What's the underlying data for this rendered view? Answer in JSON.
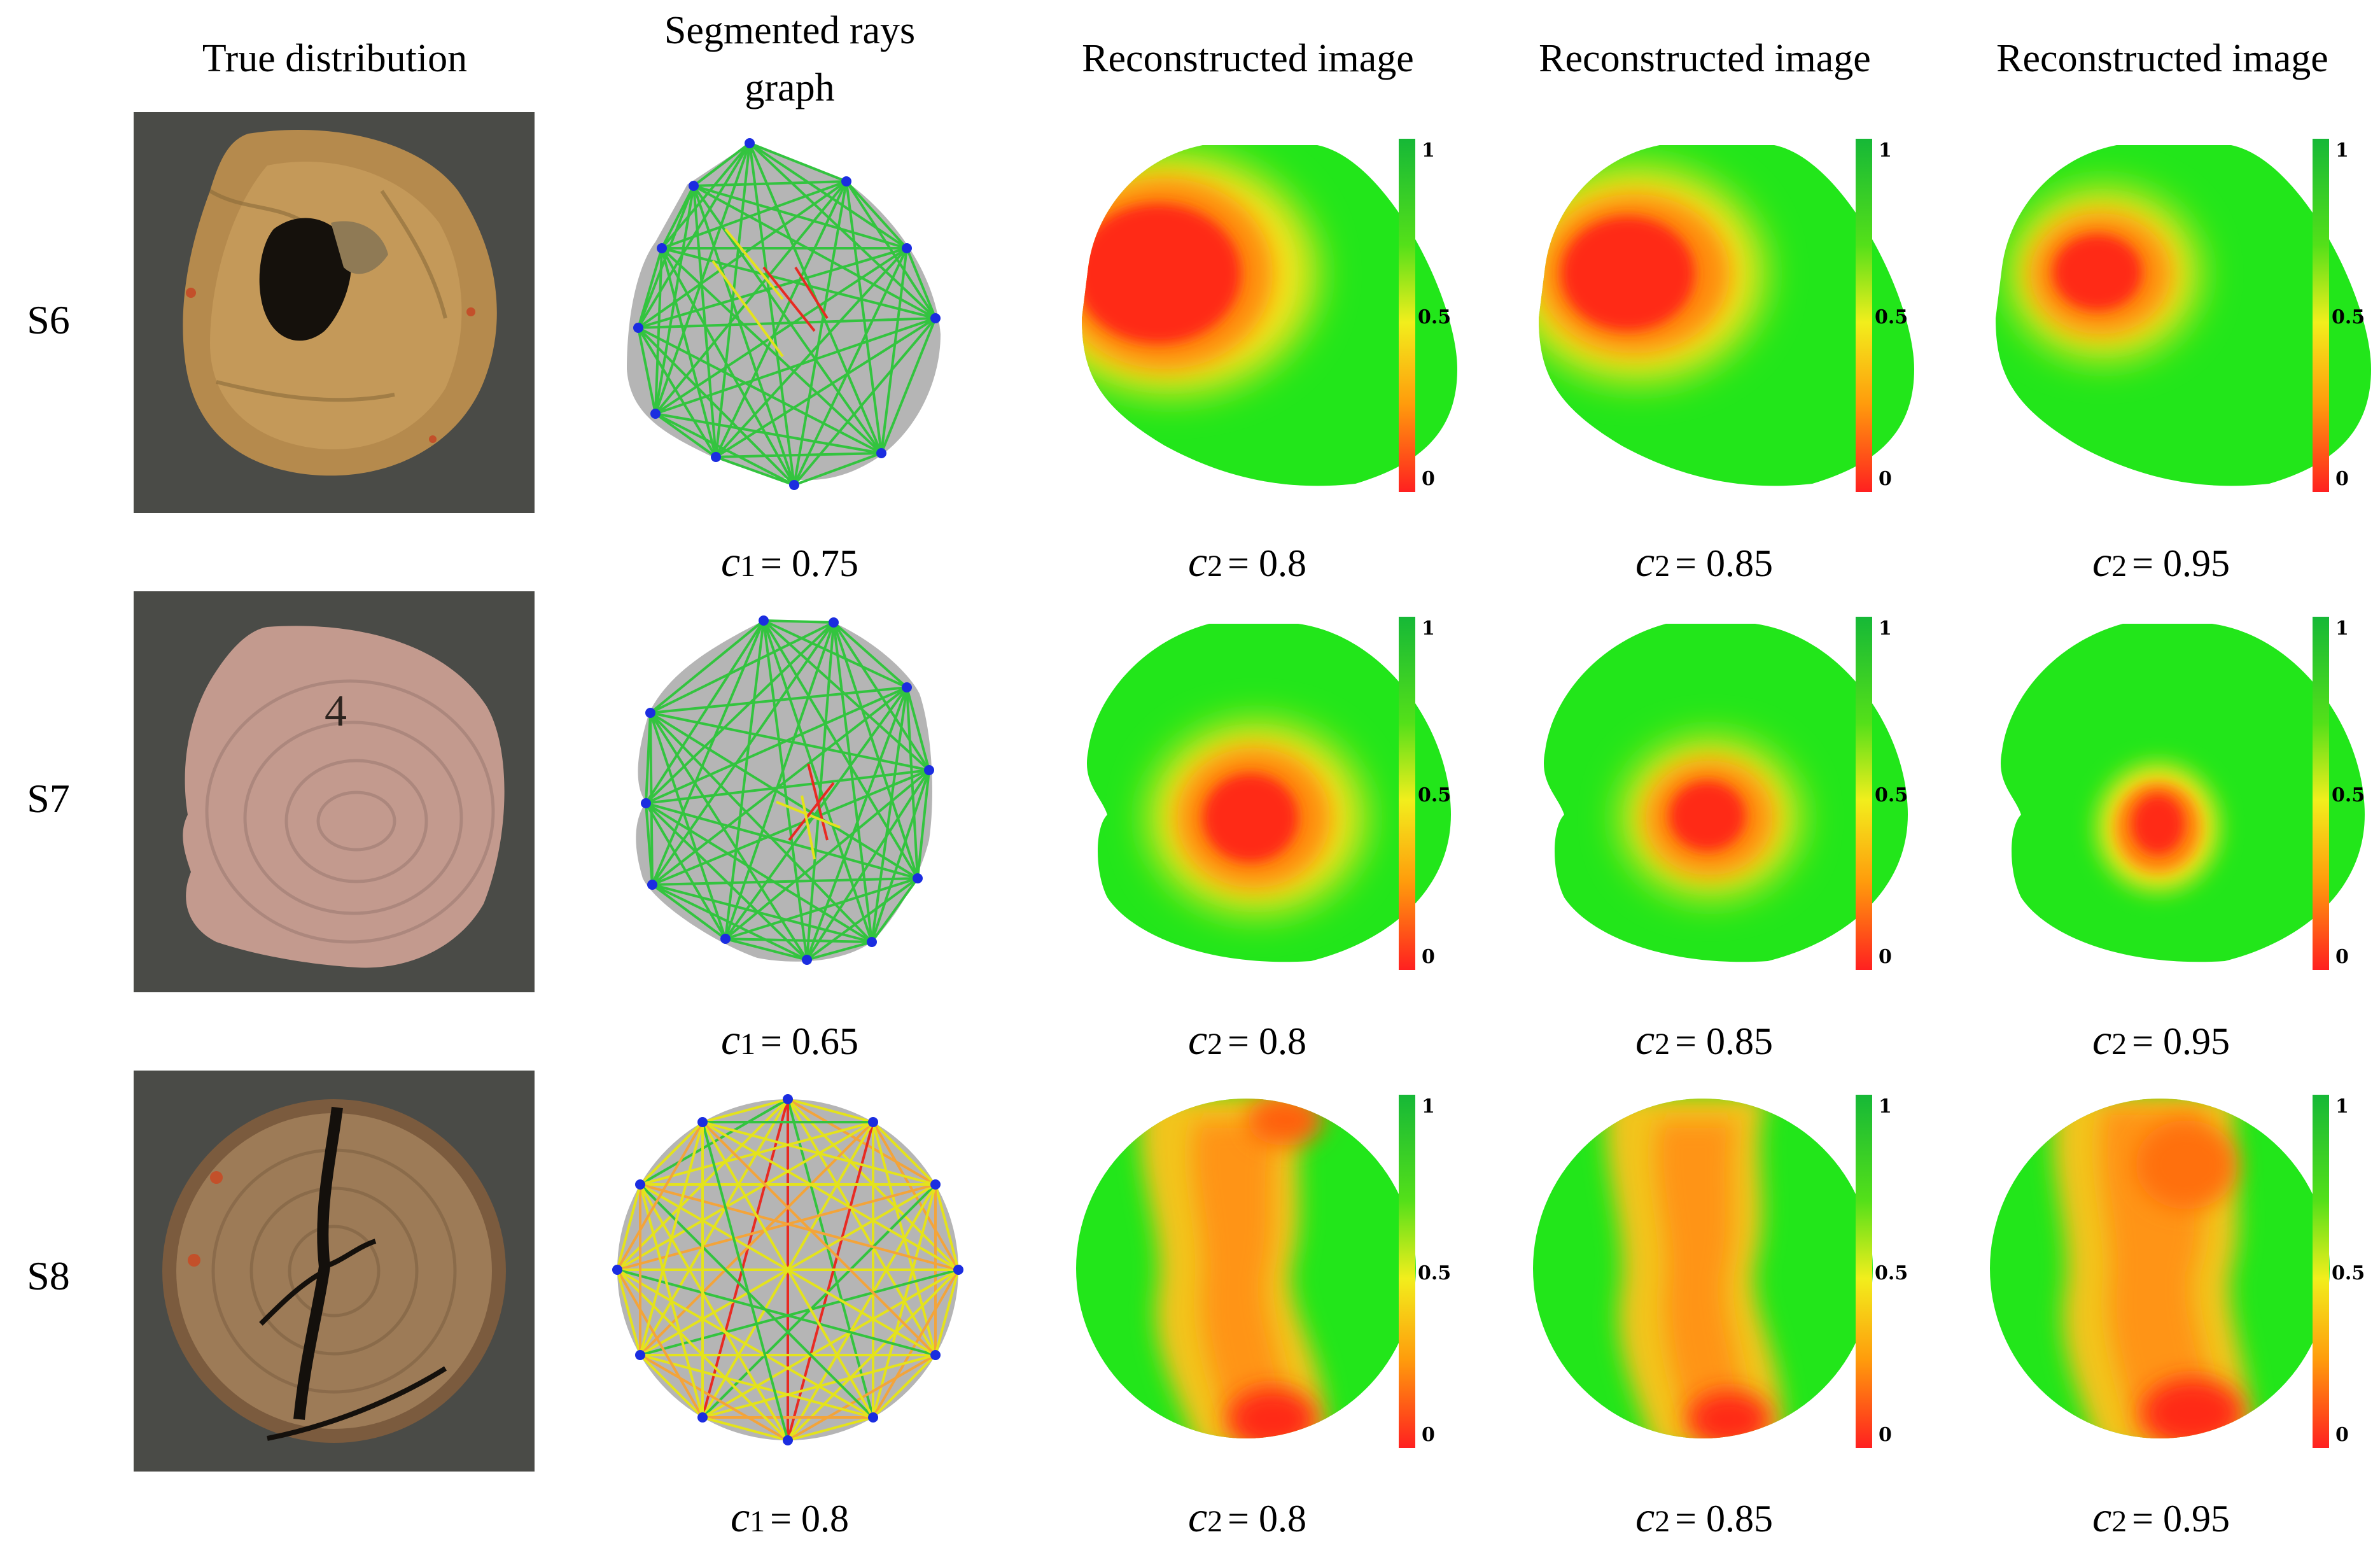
{
  "columns": [
    "True distribution",
    [
      "Segmented rays",
      "graph"
    ],
    "Reconstructed image",
    "Reconstructed image",
    "Reconstructed image"
  ],
  "colorbar": {
    "ticks": [
      "1",
      "0.5",
      "0"
    ],
    "stops": [
      "#16b837",
      "#54e019",
      "#f2ee1c",
      "#ff9c0c",
      "#ff2020"
    ]
  },
  "rows": [
    {
      "label": "S6",
      "captions": [
        {
          "sym": "c",
          "sub": "1",
          "text": "= 0.75"
        },
        {
          "sym": "c",
          "sub": "2",
          "text": "= 0.8"
        },
        {
          "sym": "c",
          "sub": "2",
          "text": "= 0.85"
        },
        {
          "sym": "c",
          "sub": "2",
          "text": "= 0.95"
        }
      ]
    },
    {
      "label": "S7",
      "captions": [
        {
          "sym": "c",
          "sub": "1",
          "text": "= 0.65"
        },
        {
          "sym": "c",
          "sub": "2",
          "text": "= 0.8"
        },
        {
          "sym": "c",
          "sub": "2",
          "text": "= 0.85"
        },
        {
          "sym": "c",
          "sub": "2",
          "text": "= 0.95"
        }
      ]
    },
    {
      "label": "S8",
      "captions": [
        {
          "sym": "c",
          "sub": "1",
          "text": "= 0.8"
        },
        {
          "sym": "c",
          "sub": "2",
          "text": "= 0.8"
        },
        {
          "sym": "c",
          "sub": "2",
          "text": "= 0.85"
        },
        {
          "sym": "c",
          "sub": "2",
          "text": "= 0.95"
        }
      ]
    }
  ],
  "colors": {
    "photo_bg": "#4a4b47",
    "graph_fill": "#b5b5b5",
    "sensor": "#1b2de0",
    "ray_green": "#33c43f",
    "ray_yellow": "#e4e31c",
    "ray_orange": "#f3a43a",
    "ray_red": "#e82a22",
    "field_green": "#22e61a"
  }
}
